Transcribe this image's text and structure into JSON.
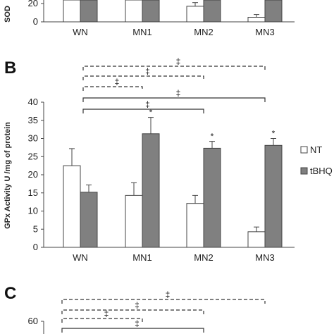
{
  "chart_data": [
    {
      "panel": "",
      "type": "bar",
      "ylabel": "SOD",
      "categories": [
        "WN",
        "MN1",
        "MN2",
        "MN3"
      ],
      "yticks": [
        0,
        20
      ],
      "series": [
        {
          "name": "NT",
          "color": "#ffffff",
          "values": [
            30,
            30,
            17,
            5
          ],
          "errors": [
            0,
            0,
            4,
            3
          ]
        },
        {
          "name": "tBHQ",
          "color": "#808080",
          "values": [
            30,
            30,
            30,
            30
          ],
          "errors": [
            0,
            0,
            0,
            0
          ]
        }
      ]
    },
    {
      "panel": "B",
      "type": "bar",
      "ylabel": "GPx Activity U /mg of protein",
      "ylim": [
        0,
        40
      ],
      "yticks": [
        0,
        5,
        10,
        15,
        20,
        25,
        30,
        35,
        40
      ],
      "categories": [
        "WN",
        "MN1",
        "MN2",
        "MN3"
      ],
      "legend_position": "right",
      "series": [
        {
          "name": "NT",
          "color": "#ffffff",
          "values": [
            22.5,
            14.3,
            12.1,
            4.3
          ],
          "errors": [
            4.7,
            3.5,
            2.2,
            1.3
          ],
          "markers": [
            "",
            "",
            "",
            ""
          ]
        },
        {
          "name": "tBHQ",
          "color": "#808080",
          "values": [
            15.2,
            31.3,
            27.3,
            28.1
          ],
          "errors": [
            2.0,
            4.5,
            1.9,
            1.9
          ],
          "markers": [
            "",
            "*",
            "*",
            "*"
          ]
        }
      ],
      "brackets": [
        {
          "from": 0,
          "to": 3,
          "style": "dashed",
          "label": "‡"
        },
        {
          "from": 0,
          "to": 2,
          "style": "dashed",
          "label": "‡"
        },
        {
          "from": 0,
          "to": 1,
          "style": "dashed",
          "label": "‡"
        },
        {
          "from": 0,
          "to": 3,
          "style": "solid",
          "label": "‡"
        },
        {
          "from": 0,
          "to": 2,
          "style": "solid",
          "label": "‡"
        }
      ]
    },
    {
      "panel": "C",
      "type": "bar",
      "ylabel": "",
      "yticks": [
        60
      ],
      "categories": [],
      "brackets": [
        {
          "from": 0,
          "to": 3,
          "style": "dashed",
          "label": "‡"
        },
        {
          "from": 0,
          "to": 2,
          "style": "dashed",
          "label": "‡"
        },
        {
          "from": 0,
          "to": 1,
          "style": "dashed",
          "label": "‡"
        },
        {
          "from": 0,
          "to": 2,
          "style": "solid",
          "label": "‡"
        }
      ]
    }
  ]
}
